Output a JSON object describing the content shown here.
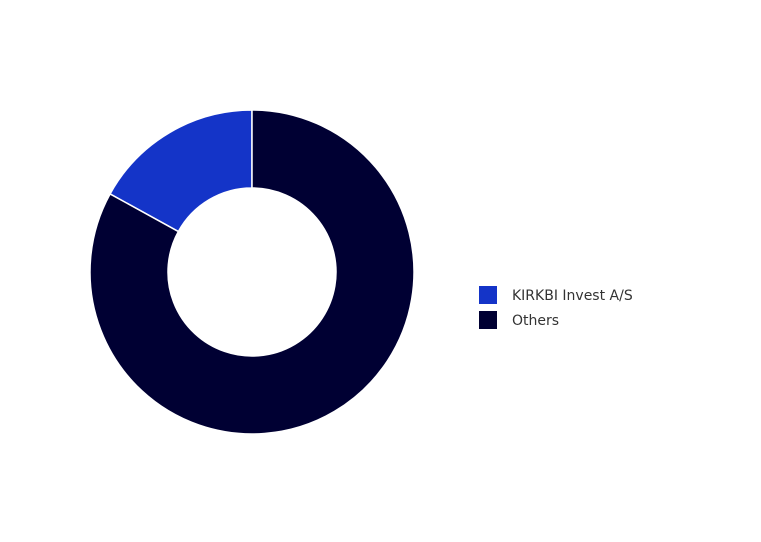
{
  "chart_data": {
    "type": "donut",
    "categories": [
      "KIRKBI Invest A/S",
      "Others"
    ],
    "values": [
      17,
      83
    ],
    "colors": [
      "#1434c8",
      "#000033"
    ],
    "legend": "right"
  }
}
